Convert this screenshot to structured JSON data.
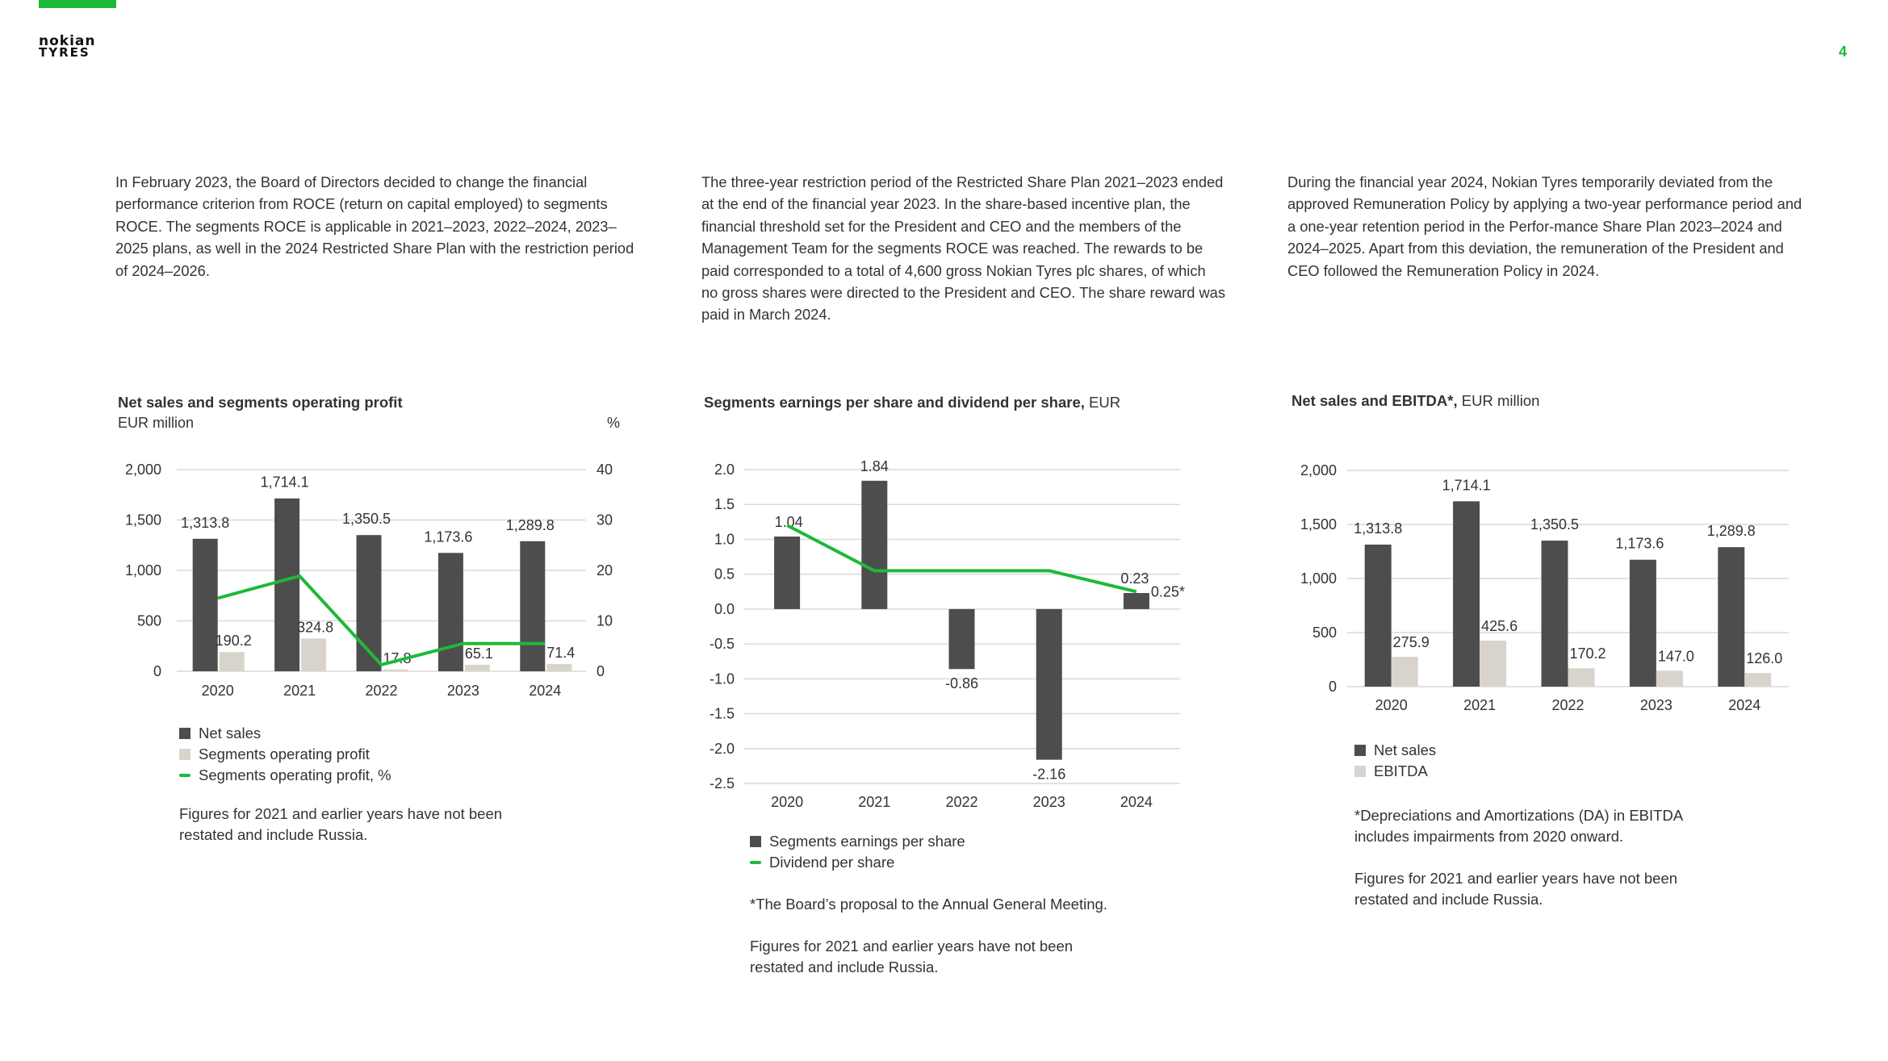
{
  "header": {
    "logo_line1": "nokian",
    "logo_line2": "TYRES",
    "page_number": "4"
  },
  "colors": {
    "accent": "#1db938",
    "bar_dark": "#4d4d4d",
    "bar_light": "#d9d4cb",
    "grid": "#d9d9d9"
  },
  "paragraphs": [
    "In February 2023, the Board of Directors decided to change the financial performance criterion from ROCE (return on capital employed) to segments ROCE. The segments ROCE is applicable in 2021–2023, 2022–2024, 2023–2025 plans, as well in the 2024 Restricted Share Plan with the restriction period of 2024–2026.",
    "The three-year restriction period of the Restricted Share Plan 2021–2023 ended at the end of the financial year 2023. In the share-based incentive plan, the financial threshold set for the President and CEO and the members of the Management Team for the segments ROCE was reached. The rewards to be paid corresponded to a total of 4,600 gross Nokian Tyres plc shares, of which no gross shares were directed to the President and CEO. The share reward was paid in March 2024.",
    "During the financial year 2024, Nokian Tyres temporarily deviated from the approved Remuneration Policy by applying a two-year performance period and a one-year retention period in the Perfor-mance Share Plan 2023–2024 and 2024–2025. Apart from this deviation, the remuneration of the President and CEO followed the Remuneration Policy in 2024."
  ],
  "chart1": {
    "title": "Net sales and segments operating profit",
    "unit_left": "EUR million",
    "unit_right": "%",
    "legend": [
      "Net sales",
      "Segments operating profit",
      "Segments operating profit, %"
    ],
    "note": "Figures for 2021 and earlier years have not been\nrestated and include Russia."
  },
  "chart2": {
    "title_bold": "Segments earnings per share and dividend per share,",
    "title_unit": " EUR",
    "legend": [
      "Segments earnings per share",
      "Dividend per share"
    ],
    "note1": "*The Board’s proposal to the Annual General Meeting.",
    "note2": "Figures for 2021 and earlier years have not been\nrestated and include Russia."
  },
  "chart3": {
    "title_bold": "Net sales and EBITDA*,",
    "title_unit": " EUR million",
    "legend": [
      "Net sales",
      "EBITDA"
    ],
    "note1": "*Depreciations and Amortizations (DA) in EBITDA\n  includes impairments from 2020 onward.",
    "note2": "Figures for 2021 and earlier years have not been\nrestated and include Russia."
  },
  "chart_data": [
    {
      "type": "bar",
      "title": "Net sales and segments operating profit",
      "ylabel": "EUR million",
      "y2label": "%",
      "categories": [
        "2020",
        "2021",
        "2022",
        "2023",
        "2024"
      ],
      "series": [
        {
          "name": "Net sales",
          "values": [
            1313.8,
            1714.1,
            1350.5,
            1173.6,
            1289.8
          ],
          "labels": [
            "1,313.8",
            "1,714.1",
            "1,350.5",
            "1,173.6",
            "1,289.8"
          ]
        },
        {
          "name": "Segments operating profit",
          "values": [
            190.2,
            324.8,
            17.8,
            65.1,
            71.4
          ],
          "labels": [
            "190.2",
            "324.8",
            "17.8",
            "65.1",
            "71.4"
          ]
        },
        {
          "name": "Segments operating profit, %",
          "type": "line",
          "axis": "right",
          "values": [
            14.5,
            18.9,
            1.3,
            5.5,
            5.5
          ]
        }
      ],
      "ylim": [
        0,
        2000
      ],
      "y2lim": [
        0,
        40
      ],
      "yticks": [
        "0",
        "500",
        "1,000",
        "1,500",
        "2,000"
      ],
      "y2ticks": [
        "0",
        "10",
        "20",
        "30",
        "40"
      ],
      "grid": true,
      "legend_position": "bottom-left"
    },
    {
      "type": "bar",
      "title": "Segments earnings per share and dividend per share, EUR",
      "categories": [
        "2020",
        "2021",
        "2022",
        "2023",
        "2024"
      ],
      "series": [
        {
          "name": "Segments earnings per share",
          "values": [
            1.04,
            1.84,
            -0.86,
            -2.16,
            0.23
          ],
          "labels": [
            "1.04",
            "1.84",
            "-0.86",
            "-2.16",
            "0.23"
          ]
        },
        {
          "name": "Dividend per share",
          "type": "line",
          "values": [
            1.2,
            0.55,
            0.55,
            0.55,
            0.25
          ],
          "end_label": "0.25*"
        }
      ],
      "ylim": [
        -2.5,
        2.0
      ],
      "yticks": [
        "2.0",
        "1.5",
        "1.0",
        "0.5",
        "0.0",
        "-0.5",
        "-1.0",
        "-1.5",
        "-2.0",
        "-2.5"
      ],
      "grid": true,
      "legend_position": "bottom-left"
    },
    {
      "type": "bar",
      "title": "Net sales and EBITDA*, EUR million",
      "categories": [
        "2020",
        "2021",
        "2022",
        "2023",
        "2024"
      ],
      "series": [
        {
          "name": "Net sales",
          "values": [
            1313.8,
            1714.1,
            1350.5,
            1173.6,
            1289.8
          ],
          "labels": [
            "1,313.8",
            "1,714.1",
            "1,350.5",
            "1,173.6",
            "1,289.8"
          ]
        },
        {
          "name": "EBITDA",
          "values": [
            275.9,
            425.6,
            170.2,
            147.0,
            126.0
          ],
          "labels": [
            "275.9",
            "425.6",
            "170.2",
            "147.0",
            "126.0"
          ]
        }
      ],
      "ylim": [
        0,
        2000
      ],
      "yticks": [
        "0",
        "500",
        "1,000",
        "1,500",
        "2,000"
      ],
      "grid": true,
      "legend_position": "bottom-left"
    }
  ]
}
